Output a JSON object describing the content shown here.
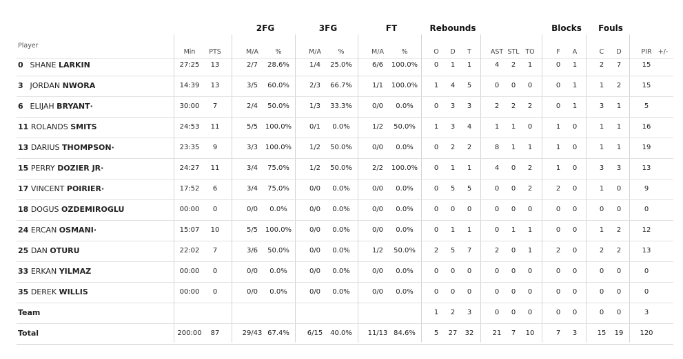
{
  "groups": {
    "fg2": "2FG",
    "fg3": "3FG",
    "ft": "FT",
    "rebounds": "Rebounds",
    "blocks": "Blocks",
    "fouls": "Fouls"
  },
  "headers": {
    "player": "Player",
    "min": "Min",
    "pts": "PTS",
    "fg2_ma": "M/A",
    "fg2_pct": "%",
    "fg3_ma": "M/A",
    "fg3_pct": "%",
    "ft_ma": "M/A",
    "ft_pct": "%",
    "reb_o": "O",
    "reb_d": "D",
    "reb_t": "T",
    "ast": "AST",
    "stl": "STL",
    "to": "TO",
    "blk_f": "F",
    "blk_a": "A",
    "foul_c": "C",
    "foul_d": "D",
    "pir": "PIR",
    "pm": "+/-"
  },
  "players": [
    {
      "num": "0",
      "first": "SHANE",
      "last": "LARKIN",
      "star": "",
      "min": "27:25",
      "pts": "13",
      "fg2_ma": "2/7",
      "fg2_pct": "28.6%",
      "fg3_ma": "1/4",
      "fg3_pct": "25.0%",
      "ft_ma": "6/6",
      "ft_pct": "100.0%",
      "o": "0",
      "d": "1",
      "t": "1",
      "ast": "4",
      "stl": "2",
      "to": "1",
      "bf": "0",
      "ba": "1",
      "fc": "2",
      "fd": "7",
      "pir": "15",
      "pm": ""
    },
    {
      "num": "3",
      "first": "JORDAN",
      "last": "NWORA",
      "star": "",
      "min": "14:39",
      "pts": "13",
      "fg2_ma": "3/5",
      "fg2_pct": "60.0%",
      "fg3_ma": "2/3",
      "fg3_pct": "66.7%",
      "ft_ma": "1/1",
      "ft_pct": "100.0%",
      "o": "1",
      "d": "4",
      "t": "5",
      "ast": "0",
      "stl": "0",
      "to": "0",
      "bf": "0",
      "ba": "1",
      "fc": "1",
      "fd": "2",
      "pir": "15",
      "pm": ""
    },
    {
      "num": "6",
      "first": "ELIJAH",
      "last": "BRYANT",
      "star": "·",
      "min": "30:00",
      "pts": "7",
      "fg2_ma": "2/4",
      "fg2_pct": "50.0%",
      "fg3_ma": "1/3",
      "fg3_pct": "33.3%",
      "ft_ma": "0/0",
      "ft_pct": "0.0%",
      "o": "0",
      "d": "3",
      "t": "3",
      "ast": "2",
      "stl": "2",
      "to": "2",
      "bf": "0",
      "ba": "1",
      "fc": "3",
      "fd": "1",
      "pir": "5",
      "pm": ""
    },
    {
      "num": "11",
      "first": "ROLANDS",
      "last": "SMITS",
      "star": "",
      "min": "24:53",
      "pts": "11",
      "fg2_ma": "5/5",
      "fg2_pct": "100.0%",
      "fg3_ma": "0/1",
      "fg3_pct": "0.0%",
      "ft_ma": "1/2",
      "ft_pct": "50.0%",
      "o": "1",
      "d": "3",
      "t": "4",
      "ast": "1",
      "stl": "1",
      "to": "0",
      "bf": "1",
      "ba": "0",
      "fc": "1",
      "fd": "1",
      "pir": "16",
      "pm": ""
    },
    {
      "num": "13",
      "first": "DARIUS",
      "last": "THOMPSON",
      "star": "·",
      "min": "23:35",
      "pts": "9",
      "fg2_ma": "3/3",
      "fg2_pct": "100.0%",
      "fg3_ma": "1/2",
      "fg3_pct": "50.0%",
      "ft_ma": "0/0",
      "ft_pct": "0.0%",
      "o": "0",
      "d": "2",
      "t": "2",
      "ast": "8",
      "stl": "1",
      "to": "1",
      "bf": "1",
      "ba": "0",
      "fc": "1",
      "fd": "1",
      "pir": "19",
      "pm": ""
    },
    {
      "num": "15",
      "first": "PERRY",
      "last": "DOZIER JR",
      "star": "·",
      "min": "24:27",
      "pts": "11",
      "fg2_ma": "3/4",
      "fg2_pct": "75.0%",
      "fg3_ma": "1/2",
      "fg3_pct": "50.0%",
      "ft_ma": "2/2",
      "ft_pct": "100.0%",
      "o": "0",
      "d": "1",
      "t": "1",
      "ast": "4",
      "stl": "0",
      "to": "2",
      "bf": "1",
      "ba": "0",
      "fc": "3",
      "fd": "3",
      "pir": "13",
      "pm": ""
    },
    {
      "num": "17",
      "first": "VINCENT",
      "last": "POIRIER",
      "star": "·",
      "min": "17:52",
      "pts": "6",
      "fg2_ma": "3/4",
      "fg2_pct": "75.0%",
      "fg3_ma": "0/0",
      "fg3_pct": "0.0%",
      "ft_ma": "0/0",
      "ft_pct": "0.0%",
      "o": "0",
      "d": "5",
      "t": "5",
      "ast": "0",
      "stl": "0",
      "to": "2",
      "bf": "2",
      "ba": "0",
      "fc": "1",
      "fd": "0",
      "pir": "9",
      "pm": ""
    },
    {
      "num": "18",
      "first": "DOGUS",
      "last": "OZDEMIROGLU",
      "star": "",
      "min": "00:00",
      "pts": "0",
      "fg2_ma": "0/0",
      "fg2_pct": "0.0%",
      "fg3_ma": "0/0",
      "fg3_pct": "0.0%",
      "ft_ma": "0/0",
      "ft_pct": "0.0%",
      "o": "0",
      "d": "0",
      "t": "0",
      "ast": "0",
      "stl": "0",
      "to": "0",
      "bf": "0",
      "ba": "0",
      "fc": "0",
      "fd": "0",
      "pir": "0",
      "pm": ""
    },
    {
      "num": "24",
      "first": "ERCAN",
      "last": "OSMANI",
      "star": "·",
      "min": "15:07",
      "pts": "10",
      "fg2_ma": "5/5",
      "fg2_pct": "100.0%",
      "fg3_ma": "0/0",
      "fg3_pct": "0.0%",
      "ft_ma": "0/0",
      "ft_pct": "0.0%",
      "o": "0",
      "d": "1",
      "t": "1",
      "ast": "0",
      "stl": "1",
      "to": "1",
      "bf": "0",
      "ba": "0",
      "fc": "1",
      "fd": "2",
      "pir": "12",
      "pm": ""
    },
    {
      "num": "25",
      "first": "DAN",
      "last": "OTURU",
      "star": "",
      "min": "22:02",
      "pts": "7",
      "fg2_ma": "3/6",
      "fg2_pct": "50.0%",
      "fg3_ma": "0/0",
      "fg3_pct": "0.0%",
      "ft_ma": "1/2",
      "ft_pct": "50.0%",
      "o": "2",
      "d": "5",
      "t": "7",
      "ast": "2",
      "stl": "0",
      "to": "1",
      "bf": "2",
      "ba": "0",
      "fc": "2",
      "fd": "2",
      "pir": "13",
      "pm": ""
    },
    {
      "num": "33",
      "first": "ERKAN",
      "last": "YILMAZ",
      "star": "",
      "min": "00:00",
      "pts": "0",
      "fg2_ma": "0/0",
      "fg2_pct": "0.0%",
      "fg3_ma": "0/0",
      "fg3_pct": "0.0%",
      "ft_ma": "0/0",
      "ft_pct": "0.0%",
      "o": "0",
      "d": "0",
      "t": "0",
      "ast": "0",
      "stl": "0",
      "to": "0",
      "bf": "0",
      "ba": "0",
      "fc": "0",
      "fd": "0",
      "pir": "0",
      "pm": ""
    },
    {
      "num": "35",
      "first": "DEREK",
      "last": "WILLIS",
      "star": "",
      "min": "00:00",
      "pts": "0",
      "fg2_ma": "0/0",
      "fg2_pct": "0.0%",
      "fg3_ma": "0/0",
      "fg3_pct": "0.0%",
      "ft_ma": "0/0",
      "ft_pct": "0.0%",
      "o": "0",
      "d": "0",
      "t": "0",
      "ast": "0",
      "stl": "0",
      "to": "0",
      "bf": "0",
      "ba": "0",
      "fc": "0",
      "fd": "0",
      "pir": "0",
      "pm": ""
    }
  ],
  "team": {
    "label": "Team",
    "min": "",
    "pts": "",
    "fg2_ma": "",
    "fg2_pct": "",
    "fg3_ma": "",
    "fg3_pct": "",
    "ft_ma": "",
    "ft_pct": "",
    "o": "1",
    "d": "2",
    "t": "3",
    "ast": "0",
    "stl": "0",
    "to": "0",
    "bf": "0",
    "ba": "0",
    "fc": "0",
    "fd": "0",
    "pir": "3",
    "pm": ""
  },
  "total": {
    "label": "Total",
    "min": "200:00",
    "pts": "87",
    "fg2_ma": "29/43",
    "fg2_pct": "67.4%",
    "fg3_ma": "6/15",
    "fg3_pct": "40.0%",
    "ft_ma": "11/13",
    "ft_pct": "84.6%",
    "o": "5",
    "d": "27",
    "t": "32",
    "ast": "21",
    "stl": "7",
    "to": "10",
    "bf": "7",
    "ba": "3",
    "fc": "15",
    "fd": "19",
    "pir": "120",
    "pm": ""
  }
}
